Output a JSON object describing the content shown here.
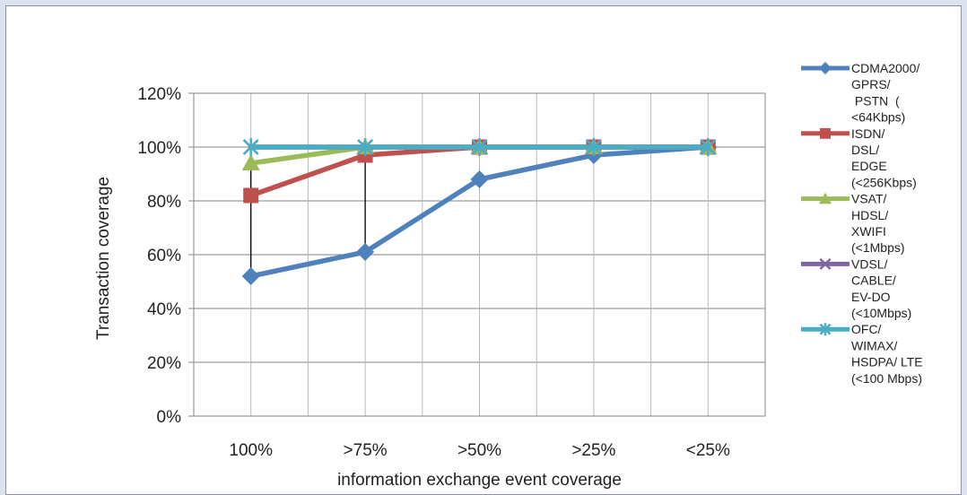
{
  "chart_data": {
    "type": "line",
    "title": "",
    "xlabel": "information exchange event coverage",
    "ylabel": "Transaction coverage",
    "categories": [
      "100%",
      ">75%",
      ">50%",
      ">25%",
      "<25%"
    ],
    "ylim": [
      0,
      1.2
    ],
    "yticks": [
      0,
      0.2,
      0.4,
      0.6,
      0.8,
      1.0,
      1.2
    ],
    "ytick_labels": [
      "0%",
      "20%",
      "40%",
      "60%",
      "80%",
      "100%",
      "120%"
    ],
    "grid": true,
    "legend_position": "right",
    "series": [
      {
        "name": "CDMA2000/ GPRS/ PSTN ( <64Kbps)",
        "legend_lines": [
          "CDMA2000/",
          "GPRS/",
          " PSTN  (",
          "<64Kbps)"
        ],
        "color": "#4f81bd",
        "marker": "diamond",
        "values": [
          0.52,
          0.61,
          0.88,
          0.97,
          1.0
        ]
      },
      {
        "name": "ISDN/ DSL/ EDGE (<256Kbps)",
        "legend_lines": [
          "ISDN/",
          "DSL/",
          "EDGE",
          "(<256Kbps)"
        ],
        "color": "#c0504d",
        "marker": "square",
        "values": [
          0.82,
          0.97,
          1.0,
          1.0,
          1.0
        ]
      },
      {
        "name": "VSAT/ HDSL/ XWIFI (<1Mbps)",
        "legend_lines": [
          "VSAT/",
          "HDSL/",
          "XWIFI",
          "(<1Mbps)"
        ],
        "color": "#9bbb59",
        "marker": "triangle",
        "values": [
          0.94,
          1.0,
          1.0,
          1.0,
          1.0
        ]
      },
      {
        "name": "VDSL/ CABLE/ EV-DO (<10Mbps)",
        "legend_lines": [
          "VDSL/",
          "CABLE/",
          "EV-DO",
          "(<10Mbps)"
        ],
        "color": "#8064a2",
        "marker": "x",
        "values": [
          1.0,
          1.0,
          1.0,
          1.0,
          1.0
        ]
      },
      {
        "name": "OFC/ WIMAX/ HSDPA/ LTE (<100 Mbps)",
        "legend_lines": [
          "OFC/",
          "WIMAX/",
          "HSDPA/ LTE",
          "(<100 Mbps)"
        ],
        "color": "#4bacc6",
        "marker": "star",
        "values": [
          1.0,
          1.0,
          1.0,
          1.0,
          1.0
        ]
      }
    ],
    "drop_lines_at": [
      "100%",
      ">75%"
    ]
  }
}
